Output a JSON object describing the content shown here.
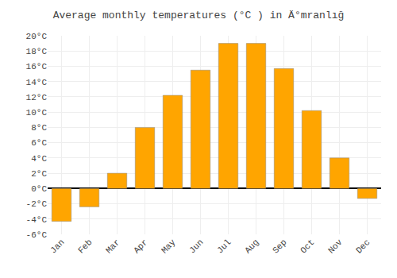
{
  "chart_data": {
    "type": "bar",
    "title": "Average monthly temperatures (°C ) in Ä°mranlığ",
    "categories": [
      "Jan",
      "Feb",
      "Mar",
      "Apr",
      "May",
      "Jun",
      "Jul",
      "Aug",
      "Sep",
      "Oct",
      "Nov",
      "Dec"
    ],
    "values": [
      -4.3,
      -2.4,
      2.0,
      8.0,
      12.2,
      15.5,
      19.0,
      19.0,
      15.7,
      10.2,
      4.0,
      -1.3
    ],
    "color": "#FFA500",
    "ylim": [
      -6,
      20
    ],
    "yticks": [
      {
        "value": -6,
        "label": "-6°C"
      },
      {
        "value": -4,
        "label": "-4°C"
      },
      {
        "value": -2,
        "label": "-2°C"
      },
      {
        "value": 0,
        "label": "0°C"
      },
      {
        "value": 2,
        "label": "2°C"
      },
      {
        "value": 4,
        "label": "4°C"
      },
      {
        "value": 6,
        "label": "6°C"
      },
      {
        "value": 8,
        "label": "8°C"
      },
      {
        "value": 10,
        "label": "10°C"
      },
      {
        "value": 12,
        "label": "12°C"
      },
      {
        "value": 14,
        "label": "14°C"
      },
      {
        "value": 16,
        "label": "16°C"
      },
      {
        "value": 18,
        "label": "18°C"
      },
      {
        "value": 20,
        "label": "20°C"
      }
    ],
    "grid": true
  }
}
